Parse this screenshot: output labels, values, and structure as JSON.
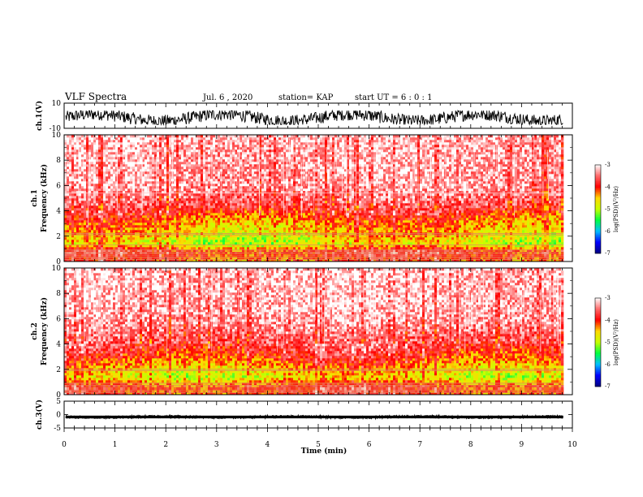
{
  "chart_data": {
    "type": "heatmap",
    "title": "VLF Spectra",
    "date": "Jul. 6 , 2020",
    "station": "station= KAP",
    "start": "start UT = 6 : 0 : 1",
    "xlabel": "Time (min)",
    "xlim": [
      0,
      10
    ],
    "x_ticks": [
      "0",
      "1",
      "2",
      "3",
      "4",
      "5",
      "6",
      "7",
      "8",
      "9",
      "10"
    ],
    "data_end_min": 9.82,
    "panels": [
      {
        "kind": "waveform",
        "ylabel": "ch.1(V)",
        "ylim": [
          -10,
          10
        ],
        "y_ticks": [
          "10",
          "-10"
        ],
        "trace_band": [
          -7,
          4
        ]
      },
      {
        "kind": "spectrogram",
        "ylabel": "ch.1 Frequency (kHz)",
        "ylim": [
          0,
          10
        ],
        "y_ticks": [
          "0",
          "2",
          "4",
          "6",
          "8",
          "10"
        ],
        "profile": [
          {
            "f": 0.0,
            "log_psd": -4.2
          },
          {
            "f": 0.8,
            "log_psd": -3.8
          },
          {
            "f": 1.4,
            "log_psd": -4.9
          },
          {
            "f": 2.2,
            "log_psd": -4.6
          },
          {
            "f": 3.2,
            "log_psd": -4.3
          },
          {
            "f": 4.5,
            "log_psd": -3.6
          },
          {
            "f": 6.0,
            "log_psd": -3.3
          },
          {
            "f": 10.0,
            "log_psd": -3.2
          }
        ],
        "lines_khz": [
          0.15,
          0.3,
          0.45,
          0.6,
          0.75,
          0.9,
          1.3,
          2.1,
          2.2,
          5.4
        ]
      },
      {
        "kind": "spectrogram",
        "ylabel": "ch.2 Frequency (kHz)",
        "ylim": [
          0,
          10
        ],
        "y_ticks": [
          "0",
          "2",
          "4",
          "6",
          "8",
          "10"
        ],
        "profile": [
          {
            "f": 0.0,
            "log_psd": -4.0
          },
          {
            "f": 0.6,
            "log_psd": -3.9
          },
          {
            "f": 1.4,
            "log_psd": -4.8
          },
          {
            "f": 2.2,
            "log_psd": -4.4
          },
          {
            "f": 3.0,
            "log_psd": -4.0
          },
          {
            "f": 4.2,
            "log_psd": -3.6
          },
          {
            "f": 6.0,
            "log_psd": -3.25
          },
          {
            "f": 10.0,
            "log_psd": -3.15
          }
        ],
        "lines_khz": [
          0.15,
          0.3,
          0.45,
          0.6,
          0.75,
          0.9,
          1.9,
          2.0
        ]
      },
      {
        "kind": "waveform",
        "ylabel": "ch.3(V)",
        "ylim": [
          -5,
          5
        ],
        "y_ticks": [
          "5",
          "0",
          "-5"
        ],
        "trace_band": [
          -1.4,
          -0.4
        ]
      }
    ],
    "colorbar": {
      "label": "log(PSD)(V²/Hz)",
      "range": [
        -7,
        -3
      ],
      "ticks": [
        "-3",
        "-4",
        "-5",
        "-6",
        "-7"
      ],
      "colors": [
        "#000080",
        "#0000ff",
        "#00c0ff",
        "#00ff40",
        "#c8ff00",
        "#ffd800",
        "#ff0000",
        "#ff6a6a",
        "#ffffff"
      ]
    },
    "grid": false,
    "legend": "colorbar right"
  }
}
